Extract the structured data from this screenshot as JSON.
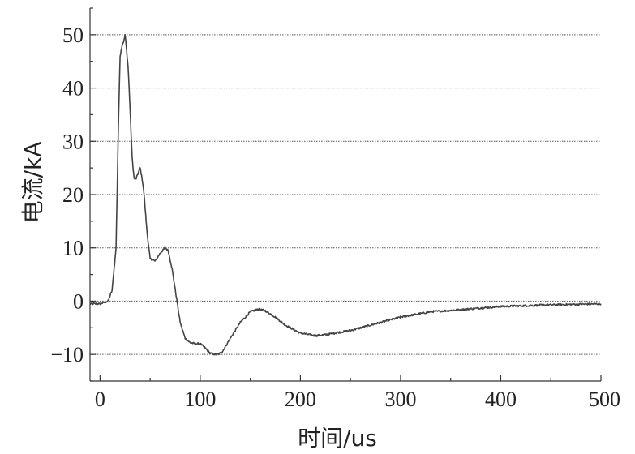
{
  "chart_data": {
    "type": "line",
    "xlabel": "时间/us",
    "ylabel": "电流/kA",
    "xlim": [
      -10,
      500
    ],
    "ylim": [
      -15,
      55
    ],
    "x_ticks": [
      0,
      100,
      200,
      300,
      400,
      500
    ],
    "y_ticks": [
      -10,
      0,
      10,
      20,
      30,
      40,
      50
    ],
    "x_tick_labels": [
      "0",
      "100",
      "200",
      "300",
      "400",
      "500"
    ],
    "y_tick_labels": [
      "−10",
      "0",
      "10",
      "20",
      "30",
      "40",
      "50"
    ],
    "grid": "horizontal dotted",
    "series_color": "#444444",
    "series": [
      {
        "x": [
          -10,
          0,
          8,
          12,
          16,
          18,
          20,
          22,
          24,
          25,
          26,
          28,
          30,
          32,
          34,
          36,
          38,
          40,
          42,
          44,
          46,
          48,
          50,
          55,
          60,
          65,
          68,
          72,
          76,
          80,
          85,
          90,
          95,
          100,
          105,
          110,
          115,
          118,
          122,
          130,
          140,
          150,
          158,
          165,
          175,
          185,
          200,
          215,
          225,
          250,
          280,
          300,
          330,
          360,
          400,
          450,
          500
        ],
        "y": [
          -0.5,
          -0.5,
          0,
          2,
          10,
          30,
          46,
          48,
          49,
          50,
          48,
          44,
          36,
          27,
          23,
          23,
          24,
          25,
          23,
          20,
          15,
          11,
          8,
          7.5,
          9,
          10,
          9.5,
          6,
          1,
          -4,
          -7,
          -7.8,
          -8,
          -8,
          -8.8,
          -9.8,
          -10,
          -10,
          -9.5,
          -7,
          -4,
          -2,
          -1.5,
          -1.8,
          -3,
          -4.5,
          -6,
          -6.5,
          -6.3,
          -5.5,
          -4,
          -3,
          -2,
          -1.6,
          -1.0,
          -0.7,
          -0.5
        ]
      }
    ]
  }
}
